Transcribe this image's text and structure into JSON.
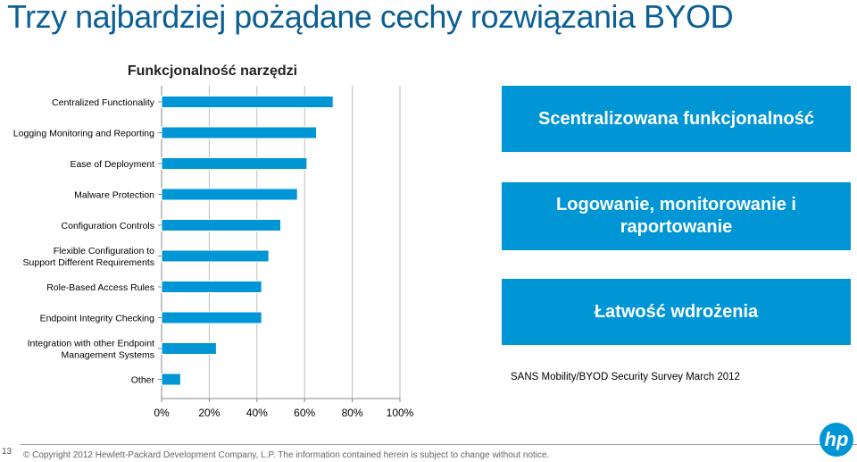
{
  "page": {
    "title": "Trzy najbardziej pożądane cechy rozwiązania BYOD",
    "page_number": "13",
    "copyright": "© Copyright 2012 Hewlett-Packard Development Company, L.P. The information contained herein is subject to change without notice.",
    "logo_text": "hp"
  },
  "side_boxes": [
    "Scentralizowana funkcjonalność",
    "Logowanie, monitorowanie i raportowanie",
    "Łatwość wdrożenia"
  ],
  "source": "SANS Mobility/BYOD Security Survey March 2012",
  "colors": {
    "accent": "#0096d6",
    "title": "#0b5f95",
    "bar_border": "#0096d6"
  },
  "chart_data": {
    "type": "bar",
    "orientation": "horizontal",
    "title": "Funkcjonalność narzędzi",
    "categories": [
      "Centralized Functionality",
      "Logging Monitoring and Reporting",
      "Ease of Deployment",
      "Malware Protection",
      "Configuration Controls",
      "Flexible Configuration to Support Different Requirements",
      "Role-Based Access Rules",
      "Endpoint Integrity Checking",
      "Integration with other Endpoint Management Systems",
      "Other"
    ],
    "category_lines": [
      [
        "Centralized Functionality"
      ],
      [
        "Logging Monitoring and Reporting"
      ],
      [
        "Ease of Deployment"
      ],
      [
        "Malware Protection"
      ],
      [
        "Configuration Controls"
      ],
      [
        "Flexible Configuration to",
        "Support Different Requirements"
      ],
      [
        "Role-Based Access Rules"
      ],
      [
        "Endpoint Integrity Checking"
      ],
      [
        "Integration with other Endpoint",
        "Management Systems"
      ],
      [
        "Other"
      ]
    ],
    "values": [
      72,
      65,
      61,
      57,
      50,
      45,
      42,
      42,
      23,
      8
    ],
    "xlim": [
      0,
      100
    ],
    "xticks": [
      "0%",
      "20%",
      "40%",
      "60%",
      "80%",
      "100%"
    ],
    "xtick_values": [
      0,
      20,
      40,
      60,
      80,
      100
    ],
    "grid": true
  }
}
